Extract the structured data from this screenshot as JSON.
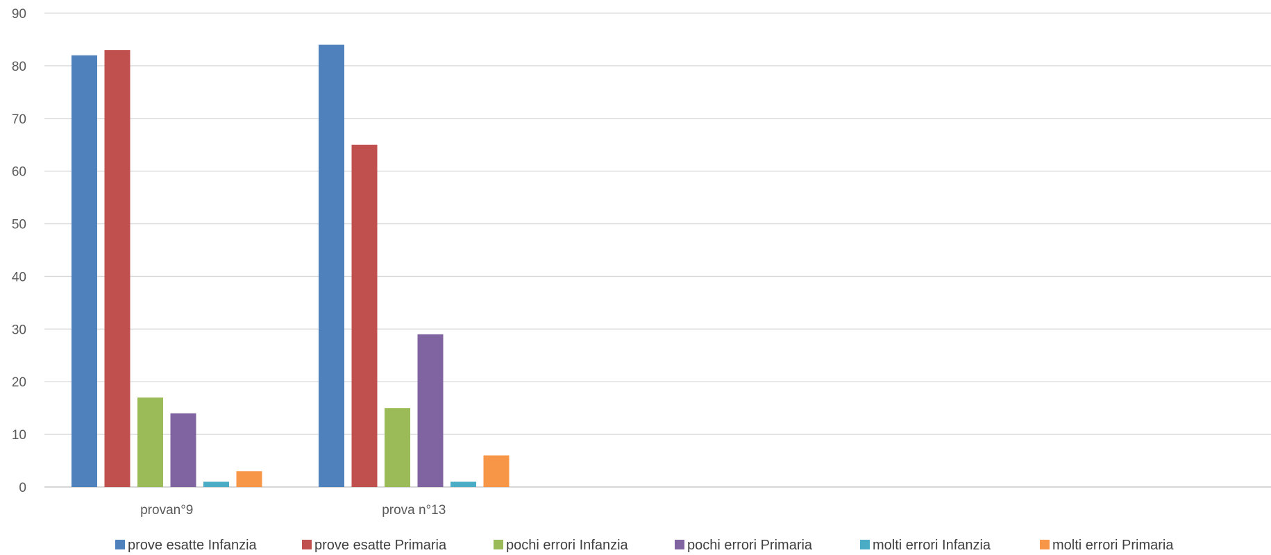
{
  "chart_data": {
    "type": "bar",
    "categories": [
      "provan°9",
      "prova n°13"
    ],
    "series": [
      {
        "name": "prove esatte Infanzia",
        "values": [
          82,
          84
        ],
        "color": "#4F81BD"
      },
      {
        "name": "prove esatte Primaria",
        "values": [
          83,
          65
        ],
        "color": "#C0504D"
      },
      {
        "name": "pochi errori Infanzia",
        "values": [
          17,
          15
        ],
        "color": "#9BBB59"
      },
      {
        "name": "pochi errori Primaria",
        "values": [
          14,
          29
        ],
        "color": "#8064A2"
      },
      {
        "name": "molti errori Infanzia",
        "values": [
          1,
          1
        ],
        "color": "#4BACC6"
      },
      {
        "name": "molti errori Primaria",
        "values": [
          3,
          6
        ],
        "color": "#F79646"
      }
    ],
    "yticks": [
      0,
      10,
      20,
      30,
      40,
      50,
      60,
      70,
      80,
      90
    ],
    "ylim": [
      0,
      90
    ],
    "grid": true,
    "legend_position": "bottom"
  }
}
